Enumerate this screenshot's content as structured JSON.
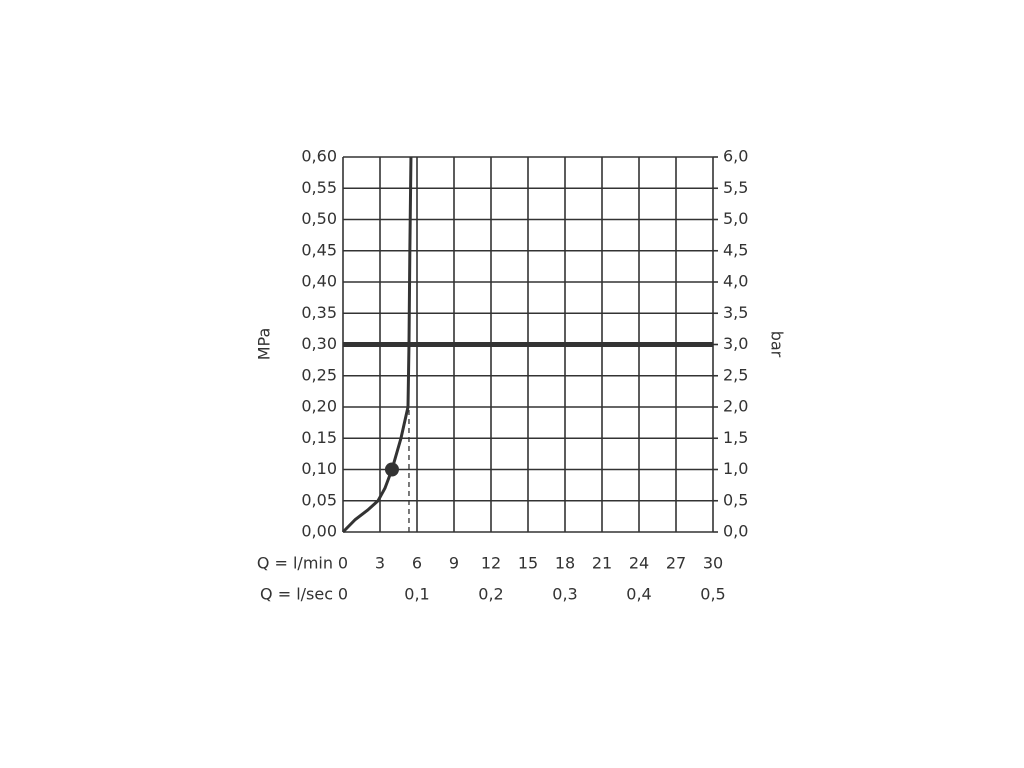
{
  "chart_data": {
    "type": "line",
    "x": [
      0,
      1,
      2,
      2.84,
      3.4,
      3.97,
      4.7,
      5.27,
      5.35,
      5.42,
      5.51
    ],
    "values": [
      0,
      0.02,
      0.035,
      0.05,
      0.07,
      0.1,
      0.15,
      0.2,
      0.3,
      0.45,
      0.6
    ],
    "color": "#333",
    "marker": {
      "x": 3.97,
      "y": 0.1
    },
    "reference_line": 0.3,
    "dashed_line": {
      "x": 5.35,
      "y": [
        0,
        0.2
      ]
    },
    "y_label": "MPa",
    "y2_label": "bar",
    "x_label": "Q = l/min",
    "x2_label": "Q = l/sec",
    "xlim": [
      0,
      30
    ],
    "xticks": [
      0,
      3,
      6,
      9,
      12,
      15,
      18,
      21,
      24,
      27,
      30
    ],
    "x2lim": [
      0,
      0.5
    ],
    "x2ticks": [
      0,
      {
        "value": 0.1,
        "label": "0,1"
      },
      {
        "value": 0.2,
        "label": "0,2"
      },
      {
        "value": 0.3,
        "label": "0,3"
      },
      {
        "value": 0.4,
        "label": "0,4"
      },
      {
        "value": 0.5,
        "label": "0,5"
      }
    ],
    "ylim": [
      0,
      0.6
    ],
    "yticks": [
      {
        "value": 0,
        "label": "0,00"
      },
      {
        "value": 0.05,
        "label": "0,05"
      },
      {
        "value": 0.1,
        "label": "0,10"
      },
      {
        "value": 0.15,
        "label": "0,15"
      },
      {
        "value": 0.2,
        "label": "0,20"
      },
      {
        "value": 0.25,
        "label": "0,25"
      },
      {
        "value": 0.3,
        "label": "0,30"
      },
      {
        "value": 0.35,
        "label": "0,35"
      },
      {
        "value": 0.4,
        "label": "0,40"
      },
      {
        "value": 0.45,
        "label": "0,45"
      },
      {
        "value": 0.5,
        "label": "0,50"
      },
      {
        "value": 0.55,
        "label": "0,55"
      },
      {
        "value": 0.6,
        "label": "0,60"
      }
    ],
    "y2lim": [
      0,
      6
    ],
    "y2ticks": [
      {
        "value": 0,
        "label": "0,0"
      },
      {
        "value": 0.5,
        "label": "0,5"
      },
      {
        "value": 1,
        "label": "1,0"
      },
      {
        "value": 1.5,
        "label": "1,5"
      },
      {
        "value": 2,
        "label": "2,0"
      },
      {
        "value": 2.5,
        "label": "2,5"
      },
      {
        "value": 3,
        "label": "3,0"
      },
      {
        "value": 3.5,
        "label": "3,5"
      },
      {
        "value": 4,
        "label": "4,0"
      },
      {
        "value": 4.5,
        "label": "4,5"
      },
      {
        "value": 5,
        "label": "5,0"
      },
      {
        "value": 5.5,
        "label": "5,5"
      },
      {
        "value": 6,
        "label": "6,0"
      }
    ],
    "grid": true
  }
}
